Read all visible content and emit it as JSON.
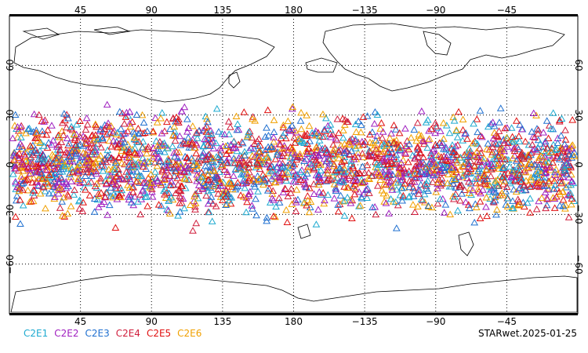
{
  "map": {
    "lon_ticks_top": [
      "45",
      "90",
      "135",
      "180",
      "−135",
      "−90",
      "−45"
    ],
    "lon_ticks_bottom": [
      "45",
      "90",
      "135",
      "180",
      "−135",
      "−90",
      "−45"
    ],
    "lat_ticks_left": [
      "60",
      "30",
      "0",
      "−30",
      "−60"
    ],
    "lat_ticks_right": [
      "60",
      "30",
      "0",
      "−30",
      "−60"
    ],
    "lon_range": [
      0,
      360
    ],
    "lat_range": [
      -90,
      90
    ],
    "grid": "dotted",
    "marker": "open-triangle"
  },
  "legend": [
    {
      "label": "C2E1",
      "color": "#1eaad0"
    },
    {
      "label": "C2E2",
      "color": "#a020c0"
    },
    {
      "label": "C2E3",
      "color": "#2070d0"
    },
    {
      "label": "C2E4",
      "color": "#d01e3c"
    },
    {
      "label": "C2E5",
      "color": "#e01010"
    },
    {
      "label": "C2E6",
      "color": "#f0a000"
    }
  ],
  "stamp": "STARwet.2025-01-25"
}
